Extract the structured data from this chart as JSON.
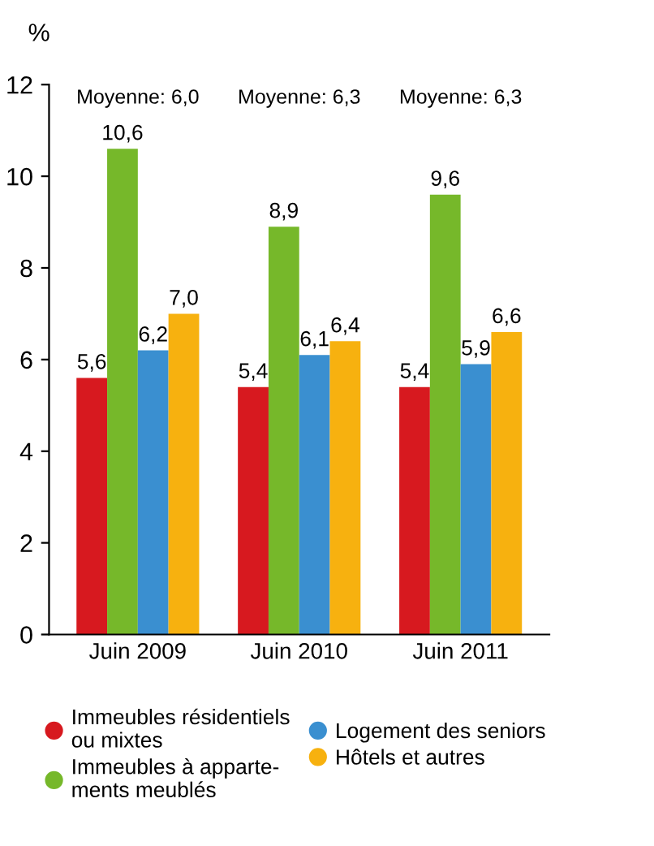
{
  "chart_data": {
    "type": "bar",
    "ylabel": "%",
    "categories": [
      "Juin 2009",
      "Juin 2010",
      "Juin 2011"
    ],
    "series": [
      {
        "name": "Immeubles résidentiels\nou mixtes",
        "color": "#d7191f",
        "values": [
          5.6,
          5.4,
          5.4
        ],
        "value_labels": [
          "5,6",
          "5,4",
          "5,4"
        ]
      },
      {
        "name": "Immeubles à apparte-\nments meublés",
        "color": "#76b82a",
        "values": [
          10.6,
          8.9,
          9.6
        ],
        "value_labels": [
          "10,6",
          "8,9",
          "9,6"
        ]
      },
      {
        "name": "Logement des seniors",
        "color": "#3a8fd0",
        "values": [
          6.2,
          6.1,
          5.9
        ],
        "value_labels": [
          "6,2",
          "6,1",
          "5,9"
        ]
      },
      {
        "name": "Hôtels et autres",
        "color": "#f7b10f",
        "values": [
          7.0,
          6.4,
          6.6
        ],
        "value_labels": [
          "7,0",
          "6,4",
          "6,6"
        ]
      }
    ],
    "annotations": [
      "Moyenne: 6,0",
      "Moyenne: 6,3",
      "Moyenne: 6,3"
    ],
    "ylim": [
      0,
      12
    ],
    "yticks": [
      0,
      2,
      4,
      6,
      8,
      10,
      12
    ],
    "grid": false,
    "legend": "bottom"
  }
}
